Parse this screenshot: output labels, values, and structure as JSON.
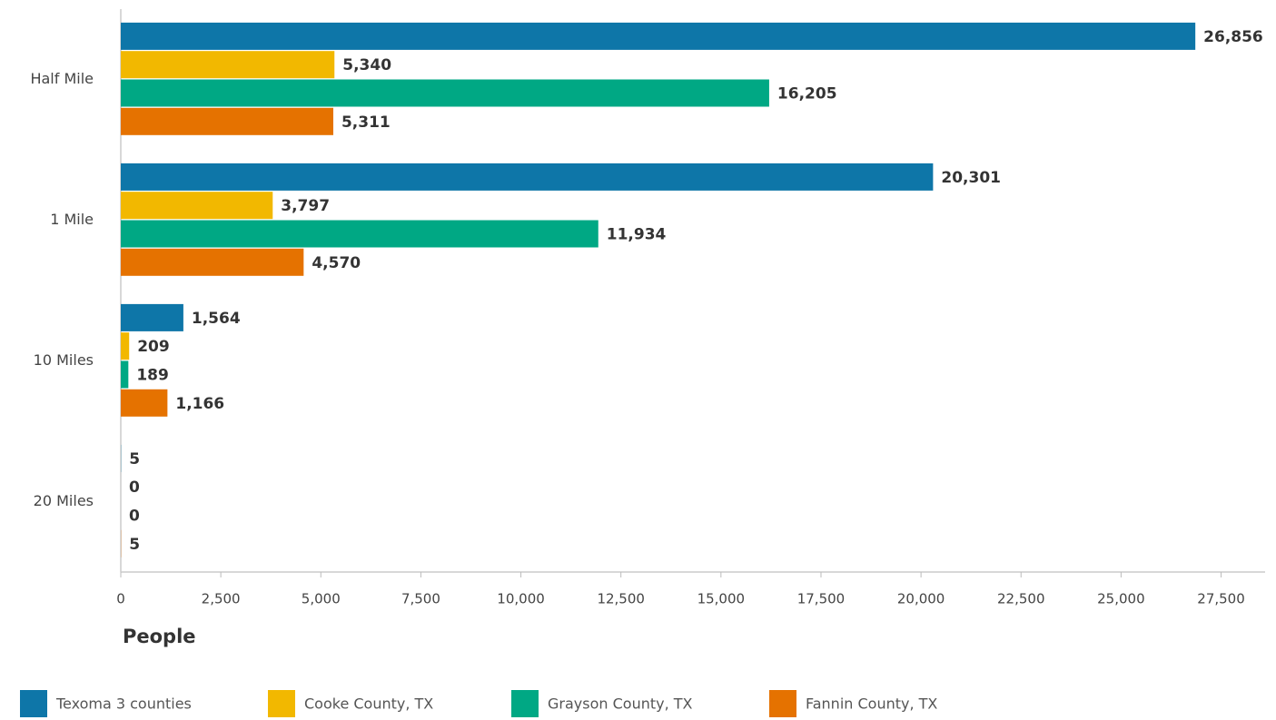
{
  "chart_data": {
    "type": "hbar",
    "categories": [
      "Half Mile",
      "1 Mile",
      "10 Miles",
      "20 Miles"
    ],
    "series": [
      {
        "name": "Texoma 3 counties",
        "color": "#0e76a8",
        "values": [
          26856,
          20301,
          1564,
          5
        ],
        "value_labels": [
          "26,856",
          "20,301",
          "1,564",
          "5"
        ]
      },
      {
        "name": "Cooke County, TX",
        "color": "#f2b800",
        "values": [
          5340,
          3797,
          209,
          0
        ],
        "value_labels": [
          "5,340",
          "3,797",
          "209",
          "0"
        ]
      },
      {
        "name": "Grayson County, TX",
        "color": "#00a884",
        "values": [
          16205,
          11934,
          189,
          0
        ],
        "value_labels": [
          "16,205",
          "11,934",
          "189",
          "0"
        ]
      },
      {
        "name": "Fannin County, TX",
        "color": "#e57200",
        "values": [
          5311,
          4570,
          1166,
          5
        ],
        "value_labels": [
          "5,311",
          "4,570",
          "1,166",
          "5"
        ]
      }
    ],
    "xlabel": "People",
    "xlim": [
      0,
      28600
    ],
    "xticks": [
      0,
      {
        "value": 2500,
        "label": "2,500"
      },
      {
        "value": 5000,
        "label": "5,000"
      },
      {
        "value": 7500,
        "label": "7,500"
      },
      {
        "value": 10000,
        "label": "10,000"
      },
      {
        "value": 12500,
        "label": "12,500"
      },
      {
        "value": 15000,
        "label": "15,000"
      },
      {
        "value": 17500,
        "label": "17,500"
      },
      {
        "value": 20000,
        "label": "20,000"
      },
      {
        "value": 22500,
        "label": "22,500"
      },
      {
        "value": 25000,
        "label": "25,000"
      },
      {
        "value": 27500,
        "label": "27,500"
      }
    ],
    "legend": "bottom-left"
  }
}
